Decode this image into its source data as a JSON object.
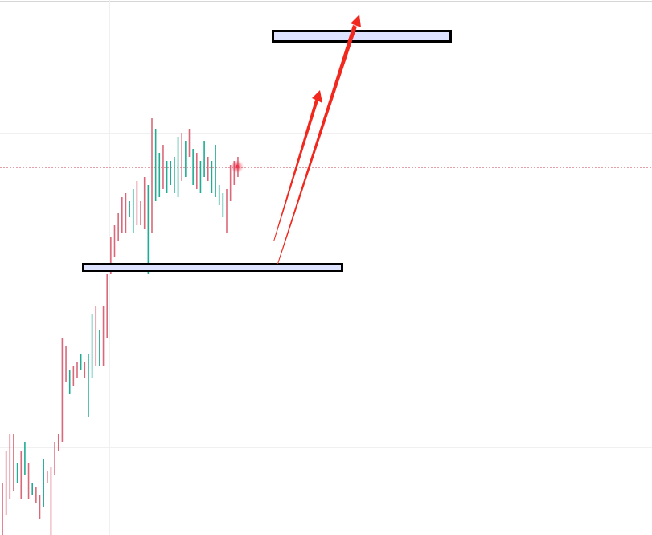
{
  "chart_data": {
    "type": "ohlc",
    "high": [
      65,
      105,
      125,
      125,
      90,
      105,
      115,
      90,
      65,
      60,
      50,
      95,
      80,
      85,
      115,
      125,
      245,
      235,
      205,
      210,
      215,
      225,
      215,
      225,
      275,
      285,
      255,
      285,
      325,
      370,
      385,
      400,
      420,
      425,
      415,
      430,
      440,
      415,
      445,
      435,
      518,
      505,
      475,
      485,
      465,
      465,
      470,
      495,
      500,
      490,
      505,
      480,
      475,
      465,
      490,
      470,
      465,
      485,
      435,
      425,
      430,
      460,
      465,
      470
    ],
    "low": [
      0,
      25,
      45,
      55,
      65,
      45,
      75,
      45,
      50,
      40,
      20,
      35,
      65,
      0,
      75,
      105,
      115,
      190,
      175,
      185,
      195,
      205,
      195,
      147,
      195,
      210,
      210,
      210,
      245,
      325,
      345,
      365,
      375,
      375,
      395,
      375,
      385,
      385,
      380,
      325,
      375,
      415,
      420,
      430,
      425,
      435,
      425,
      420,
      440,
      445,
      470,
      435,
      430,
      425,
      445,
      440,
      425,
      420,
      410,
      395,
      375,
      415,
      435,
      445
    ],
    "direction": [
      "down",
      "down",
      "down",
      "down",
      "up",
      "down",
      "up",
      "down",
      "up",
      "down",
      "down",
      "up",
      "down",
      "down",
      "down",
      "down",
      "down",
      "down",
      "up",
      "down",
      "down",
      "up",
      "down",
      "up",
      "up",
      "down",
      "up",
      "down",
      "down",
      "down",
      "down",
      "down",
      "down",
      "down",
      "up",
      "up",
      "down",
      "down",
      "down",
      "up",
      "down",
      "up",
      "up",
      "down",
      "up",
      "up",
      "up",
      "up",
      "down",
      "up",
      "down",
      "up",
      "down",
      "up",
      "up",
      "down",
      "up",
      "up",
      "up",
      "up",
      "down",
      "down",
      "down",
      "down"
    ],
    "up_color": "#22ab94",
    "down_color": "#d9697a",
    "ylim": [
      0,
      665
    ]
  }
}
